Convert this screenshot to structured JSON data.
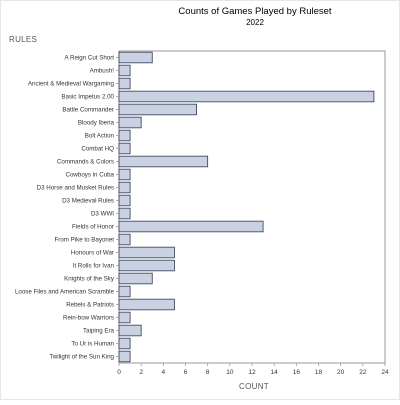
{
  "chart_data": {
    "type": "bar",
    "orientation": "horizontal",
    "title": "Counts of Games Played by Ruleset",
    "subtitle": "2022",
    "xlabel": "COUNT",
    "ylabel": "RULES",
    "xlim": [
      0,
      24
    ],
    "xticks": [
      0,
      2,
      4,
      6,
      8,
      10,
      12,
      14,
      16,
      18,
      20,
      22,
      24
    ],
    "grid": false,
    "bar_color": "#c9d1e3",
    "bar_edge_color": "#2f3b52",
    "categories": [
      "A Reign Cut Short",
      "Ambush!",
      "Ancient & Medieval Wargaming",
      "Basic Impetus 2.00",
      "Battle Commander",
      "Bloody Iberia",
      "Bolt Action",
      "Combat HQ",
      "Commands & Colors",
      "Cowboys in Cuba",
      "D3 Horse and Musket Rules",
      "D3 Medieval Rules",
      "D3 WWI",
      "Fields of Honor",
      "From Pike to Bayonet",
      "Honours of War",
      "It Rolls for Ivan",
      "Knights of the Sky",
      "Loose Files and American Scramble",
      "Rebels & Patriots",
      "Rein-bow Warriors",
      "Taiping Era",
      "To Ur is Human",
      "Twilight of the Sun King"
    ],
    "values": [
      3,
      1,
      1,
      23,
      7,
      2,
      1,
      1,
      8,
      1,
      1,
      1,
      1,
      13,
      1,
      5,
      5,
      3,
      1,
      5,
      1,
      2,
      1,
      1
    ]
  }
}
